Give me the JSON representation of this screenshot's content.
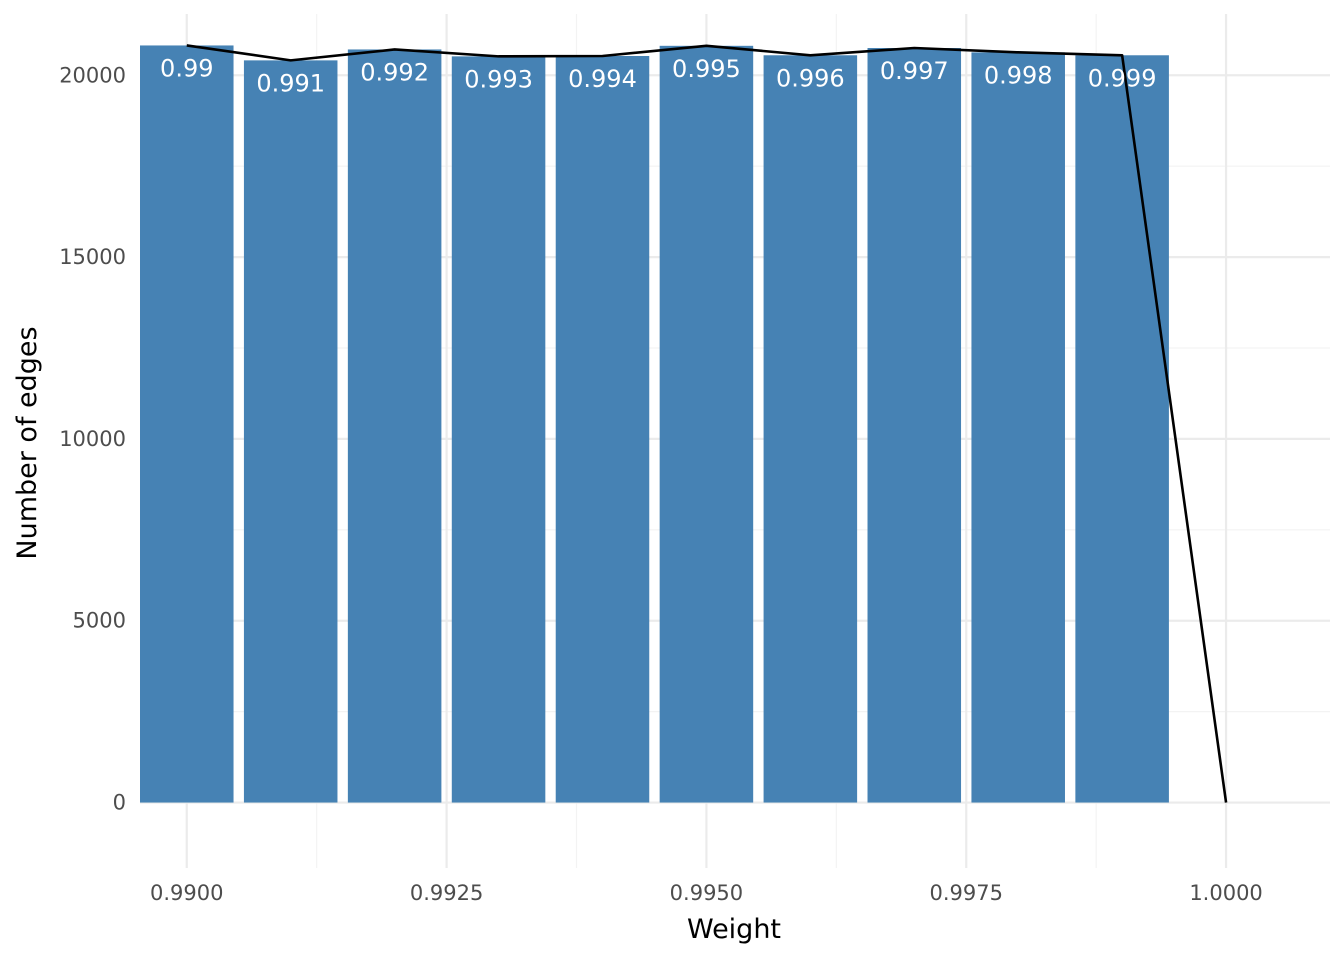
{
  "chart_data": {
    "type": "bar",
    "xlabel": "Weight",
    "ylabel": "Number of edges",
    "xlim": [
      0.98955,
      1.001
    ],
    "ylim": [
      -1800,
      21850
    ],
    "x_ticks": [
      {
        "value": 0.99,
        "label": "0.9900"
      },
      {
        "value": 0.9925,
        "label": "0.9925"
      },
      {
        "value": 0.995,
        "label": "0.9950"
      },
      {
        "value": 0.9975,
        "label": "0.9975"
      },
      {
        "value": 1.0,
        "label": "1.0000"
      }
    ],
    "x_minor_ticks": [
      0.99125,
      0.99375,
      0.99625,
      0.99875,
      1.00125
    ],
    "y_ticks": [
      {
        "value": 0,
        "label": "0"
      },
      {
        "value": 5000,
        "label": "5000"
      },
      {
        "value": 10000,
        "label": "10000"
      },
      {
        "value": 15000,
        "label": "15000"
      },
      {
        "value": 20000,
        "label": "20000"
      }
    ],
    "y_minor_ticks": [
      2500,
      7500,
      12500,
      17500
    ],
    "bar_width": 0.0009,
    "bars": [
      {
        "x": 0.99,
        "value": 20820,
        "label": "0.99"
      },
      {
        "x": 0.991,
        "value": 20410,
        "label": "0.991"
      },
      {
        "x": 0.992,
        "value": 20710,
        "label": "0.992"
      },
      {
        "x": 0.993,
        "value": 20520,
        "label": "0.993"
      },
      {
        "x": 0.994,
        "value": 20530,
        "label": "0.994"
      },
      {
        "x": 0.995,
        "value": 20810,
        "label": "0.995"
      },
      {
        "x": 0.996,
        "value": 20550,
        "label": "0.996"
      },
      {
        "x": 0.997,
        "value": 20750,
        "label": "0.997"
      },
      {
        "x": 0.998,
        "value": 20630,
        "label": "0.998"
      },
      {
        "x": 0.999,
        "value": 20550,
        "label": "0.999"
      }
    ],
    "line": {
      "x": [
        0.99,
        0.991,
        0.992,
        0.993,
        0.994,
        0.995,
        0.996,
        0.997,
        0.998,
        0.999,
        1.0
      ],
      "y": [
        20820,
        20410,
        20710,
        20520,
        20530,
        20810,
        20550,
        20750,
        20630,
        20550,
        0
      ]
    },
    "grid": true,
    "legend": "none",
    "colors": {
      "bar": "#4682b4",
      "line": "#000000",
      "bar_label": "#ffffff",
      "grid_major": "#ebebeb",
      "grid_minor": "#f3f3f3",
      "tick_label": "#4d4d4d"
    }
  }
}
